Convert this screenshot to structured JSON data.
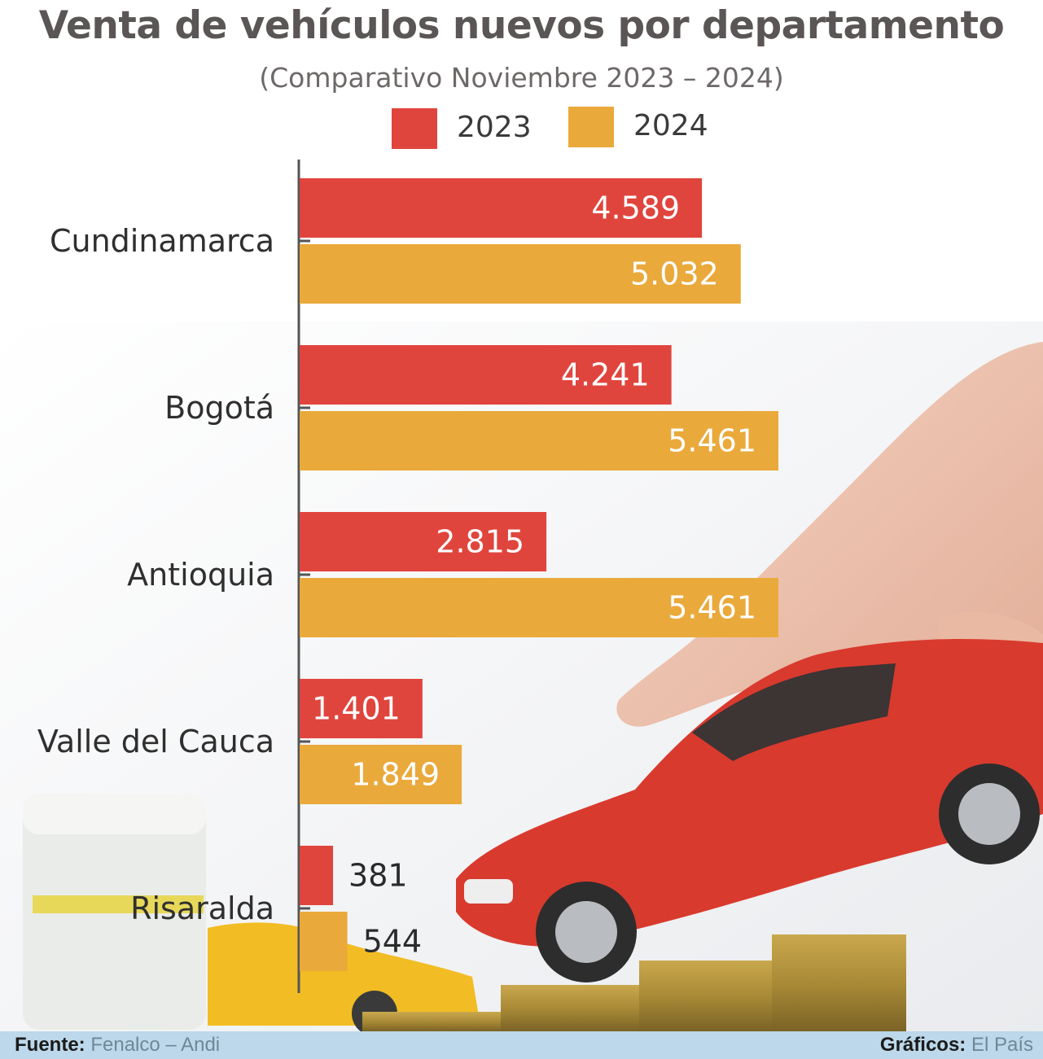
{
  "header": {
    "title": "Venta de vehículos nuevos por departamento",
    "subtitle": "(Comparativo Noviembre 2023 – 2024)"
  },
  "legend": [
    {
      "label": "2023",
      "color": "#e0453d"
    },
    {
      "label": "2024",
      "color": "#eaa93b"
    }
  ],
  "chart_data": {
    "type": "bar",
    "orientation": "horizontal",
    "title": "Venta de vehículos nuevos por departamento",
    "subtitle": "(Comparativo Noviembre 2023 – 2024)",
    "categories": [
      "Cundinamarca",
      "Bogotá",
      "Antioquia",
      "Valle del Cauca",
      "Risaralda"
    ],
    "series": [
      {
        "name": "2023",
        "color": "#e0453d",
        "values": [
          4589,
          4241,
          2815,
          1401,
          381
        ],
        "labels": [
          "4.589",
          "4.241",
          "2.815",
          "1.401",
          "381"
        ]
      },
      {
        "name": "2024",
        "color": "#eaa93b",
        "values": [
          5032,
          5461,
          5461,
          1849,
          544
        ],
        "labels": [
          "5.032",
          "5.461",
          "5.461",
          "1.849",
          "544"
        ]
      }
    ],
    "xlim": [
      0,
      5461
    ],
    "grid": false,
    "legend_position": "top-center"
  },
  "footer": {
    "source_label": "Fuente:",
    "source_value": "Fenalco – Andi",
    "credit_label": "Gráficos:",
    "credit_value": "El País"
  }
}
